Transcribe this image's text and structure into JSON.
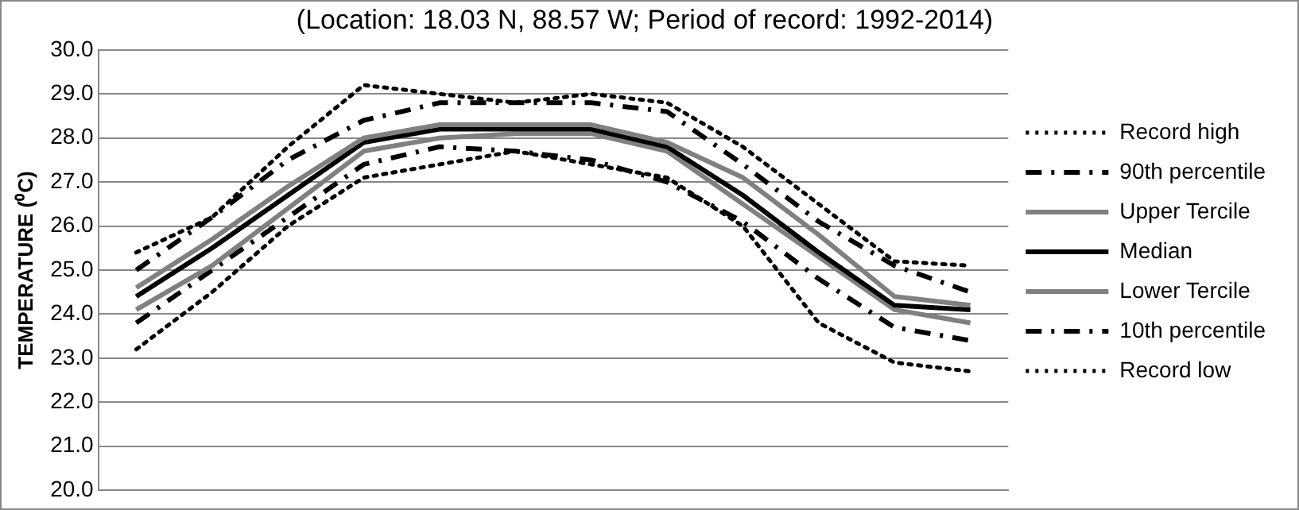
{
  "chart_data": {
    "type": "line",
    "title": "(Location: 18.03 N, 88.57 W; Period of record: 1992-2014)",
    "ylabel": "TEMPERATURE (⁰C)",
    "categories": [
      null,
      null,
      null,
      null,
      null,
      null,
      null,
      null,
      null,
      null,
      null,
      null
    ],
    "ylim": [
      20,
      30
    ],
    "yticks": [
      {
        "value": 20,
        "label": "20.0"
      },
      {
        "value": 21,
        "label": "21.0"
      },
      {
        "value": 22,
        "label": "22.0"
      },
      {
        "value": 23,
        "label": "23.0"
      },
      {
        "value": 24,
        "label": "24.0"
      },
      {
        "value": 25,
        "label": "25.0"
      },
      {
        "value": 26,
        "label": "26.0"
      },
      {
        "value": 27,
        "label": "27.0"
      },
      {
        "value": 28,
        "label": "28.0"
      },
      {
        "value": 29,
        "label": "29.0"
      },
      {
        "value": 30,
        "label": "30.0"
      }
    ],
    "grid": "y",
    "legend": "right",
    "marker": "none",
    "tick_labels": "y",
    "series": [
      {
        "name": "Record high",
        "color": "#000000",
        "line_style": "dotted",
        "values": [
          25.4,
          26.2,
          27.8,
          29.2,
          29.0,
          28.8,
          29.0,
          28.8,
          27.8,
          26.5,
          25.2,
          25.1
        ]
      },
      {
        "name": "90th percentile",
        "color": "#000000",
        "line_style": "dashed",
        "values": [
          25.0,
          26.2,
          27.5,
          28.4,
          28.8,
          28.8,
          28.8,
          28.6,
          27.4,
          26.1,
          25.1,
          24.5
        ]
      },
      {
        "name": "Upper Tercile",
        "color": "#808080",
        "line_style": "solid",
        "values": [
          24.6,
          25.7,
          26.9,
          28.0,
          28.3,
          28.3,
          28.3,
          27.9,
          27.1,
          25.8,
          24.4,
          24.2
        ]
      },
      {
        "name": "Median",
        "color": "#000000",
        "line_style": "solid",
        "values": [
          24.4,
          25.5,
          26.7,
          27.9,
          28.2,
          28.2,
          28.2,
          27.8,
          26.7,
          25.4,
          24.2,
          24.1
        ]
      },
      {
        "name": "Lower Tercile",
        "color": "#808080",
        "line_style": "solid",
        "values": [
          24.1,
          25.1,
          26.4,
          27.7,
          28.0,
          28.1,
          28.1,
          27.7,
          26.5,
          25.3,
          24.1,
          23.8
        ]
      },
      {
        "name": "10th percentile",
        "color": "#000000",
        "line_style": "dashed",
        "values": [
          23.8,
          25.0,
          26.2,
          27.4,
          27.8,
          27.7,
          27.5,
          27.0,
          26.1,
          24.8,
          23.7,
          23.4
        ]
      },
      {
        "name": "Record low",
        "color": "#000000",
        "line_style": "dotted",
        "values": [
          23.2,
          24.5,
          26.0,
          27.1,
          27.4,
          27.7,
          27.4,
          27.1,
          26.0,
          23.8,
          22.9,
          22.7
        ]
      }
    ]
  }
}
